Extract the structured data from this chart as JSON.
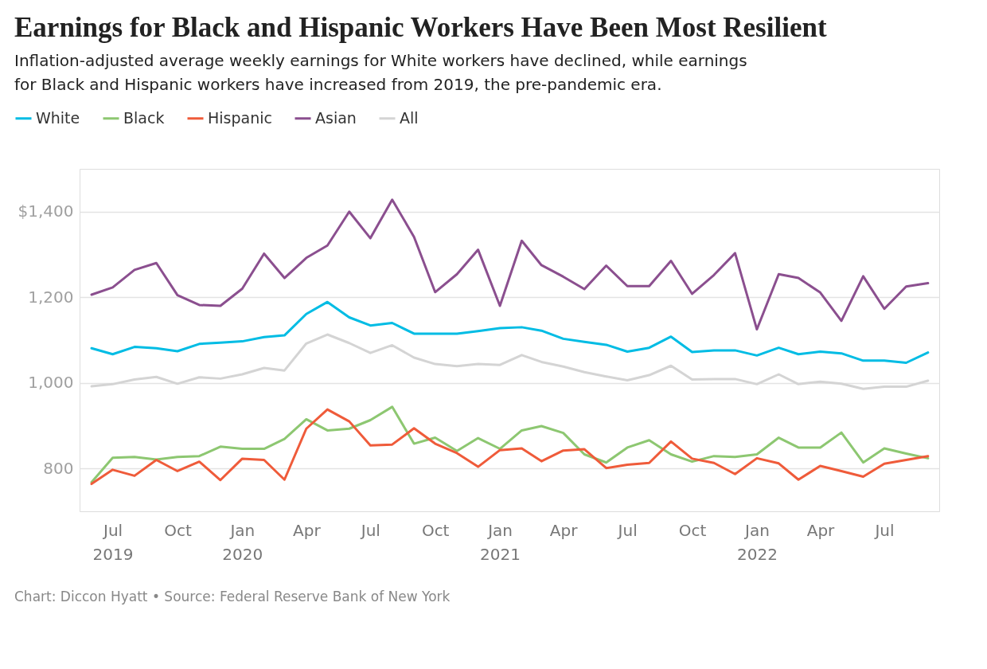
{
  "chart_data": {
    "type": "line",
    "title": "Earnings for Black and Hispanic Workers Have Been Most Resilient",
    "subtitle": "Inflation-adjusted average weekly earnings for White workers have declined, while earnings for Black and Hispanic workers have increased from 2019, the pre-pandemic era.",
    "annotations": [
      "Chart: Diccon Hyatt • Source: Federal Reserve Bank of New York"
    ],
    "x": [
      "2019-06",
      "2019-07",
      "2019-08",
      "2019-09",
      "2019-10",
      "2019-11",
      "2019-12",
      "2020-01",
      "2020-02",
      "2020-03",
      "2020-04",
      "2020-05",
      "2020-06",
      "2020-07",
      "2020-08",
      "2020-09",
      "2020-10",
      "2020-11",
      "2020-12",
      "2021-01",
      "2021-02",
      "2021-03",
      "2021-04",
      "2021-05",
      "2021-06",
      "2021-07",
      "2021-08",
      "2021-09",
      "2021-10",
      "2021-11",
      "2021-12",
      "2022-01",
      "2022-02",
      "2022-03",
      "2022-04",
      "2022-05",
      "2022-06",
      "2022-07",
      "2022-08",
      "2022-09"
    ],
    "series": [
      {
        "name": "White",
        "color": "#00bce4",
        "values": [
          1081,
          1067,
          1084,
          1081,
          1074,
          1091,
          1094,
          1097,
          1107,
          1111,
          1161,
          1189,
          1153,
          1134,
          1140,
          1115,
          1115,
          1115,
          1121,
          1128,
          1130,
          1122,
          1103,
          1096,
          1089,
          1073,
          1082,
          1108,
          1072,
          1076,
          1076,
          1064,
          1082,
          1067,
          1073,
          1069,
          1052,
          1052,
          1047,
          1071
        ]
      },
      {
        "name": "Black",
        "color": "#8dc771",
        "values": [
          768,
          825,
          827,
          821,
          827,
          829,
          851,
          846,
          846,
          869,
          915,
          889,
          893,
          913,
          944,
          858,
          872,
          841,
          871,
          846,
          889,
          899,
          883,
          833,
          814,
          849,
          866,
          833,
          816,
          829,
          827,
          833,
          872,
          849,
          849,
          884,
          814,
          847,
          835,
          824
        ]
      },
      {
        "name": "Hispanic",
        "color": "#ef5b3a",
        "values": [
          764,
          797,
          783,
          820,
          794,
          816,
          773,
          823,
          820,
          774,
          893,
          938,
          910,
          854,
          856,
          894,
          858,
          836,
          804,
          843,
          847,
          817,
          842,
          845,
          801,
          809,
          813,
          863,
          823,
          813,
          787,
          824,
          812,
          774,
          806,
          794,
          781,
          811,
          820,
          829
        ]
      },
      {
        "name": "Asian",
        "color": "#8b4f8f",
        "values": [
          1206,
          1223,
          1264,
          1280,
          1205,
          1182,
          1180,
          1220,
          1302,
          1245,
          1292,
          1321,
          1400,
          1338,
          1428,
          1341,
          1212,
          1254,
          1311,
          1180,
          1332,
          1275,
          1248,
          1219,
          1274,
          1226,
          1226,
          1285,
          1208,
          1252,
          1303,
          1125,
          1254,
          1245,
          1211,
          1145,
          1249,
          1173,
          1225,
          1233
        ]
      },
      {
        "name": "All",
        "color": "#d4d4d4",
        "values": [
          992,
          997,
          1008,
          1014,
          998,
          1013,
          1010,
          1020,
          1035,
          1029,
          1092,
          1113,
          1093,
          1070,
          1088,
          1059,
          1044,
          1039,
          1044,
          1042,
          1065,
          1049,
          1038,
          1025,
          1015,
          1006,
          1018,
          1040,
          1008,
          1009,
          1009,
          997,
          1020,
          997,
          1003,
          998,
          986,
          991,
          991,
          1005
        ]
      }
    ],
    "ylim": [
      700,
      1500
    ],
    "yticks": [
      {
        "value": 800,
        "label": "800"
      },
      {
        "value": 1000,
        "label": "1,000"
      },
      {
        "value": 1200,
        "label": "1,200"
      },
      {
        "value": 1400,
        "label": "$1,400"
      }
    ],
    "xlim": [
      "2019-05-15",
      "2022-09-17"
    ],
    "xticks": [
      {
        "value": "2019-07",
        "label": "Jul\n2019"
      },
      {
        "value": "2019-10",
        "label": "Oct"
      },
      {
        "value": "2020-01",
        "label": "Jan\n2020"
      },
      {
        "value": "2020-04",
        "label": "Apr"
      },
      {
        "value": "2020-07",
        "label": "Jul"
      },
      {
        "value": "2020-10",
        "label": "Oct"
      },
      {
        "value": "2021-01",
        "label": "Jan\n2021"
      },
      {
        "value": "2021-04",
        "label": "Apr"
      },
      {
        "value": "2021-07",
        "label": "Jul"
      },
      {
        "value": "2021-10",
        "label": "Oct"
      },
      {
        "value": "2022-01",
        "label": "Jan\n2022"
      },
      {
        "value": "2022-04",
        "label": "Apr"
      },
      {
        "value": "2022-07",
        "label": "Jul"
      }
    ],
    "grid": "y",
    "legend": "top left",
    "marker": "none",
    "line_style": "solid"
  }
}
